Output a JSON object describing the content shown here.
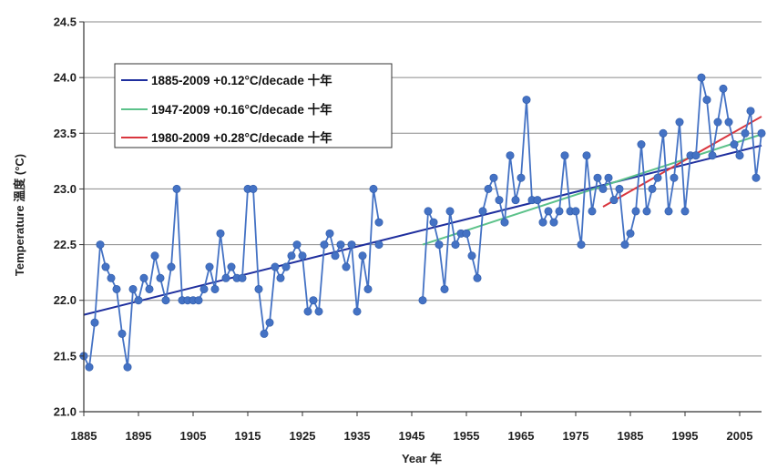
{
  "chart_data": {
    "type": "line",
    "xlabel": "Year 年",
    "ylabel": "Temperature 溫度 (°C)",
    "xlim": [
      1885,
      2009
    ],
    "ylim": [
      21.0,
      24.5
    ],
    "x_ticks": [
      "1885",
      "1895",
      "1905",
      "1915",
      "1925",
      "1935",
      "1945",
      "1955",
      "1965",
      "1975",
      "1985",
      "1995",
      "2005"
    ],
    "x_tick_values": [
      1885,
      1895,
      1905,
      1915,
      1925,
      1935,
      1945,
      1955,
      1965,
      1975,
      1985,
      1995,
      2005
    ],
    "y_ticks": [
      "21.0",
      "21.5",
      "22.0",
      "22.5",
      "23.0",
      "23.5",
      "24.0",
      "24.5"
    ],
    "y_tick_values": [
      21.0,
      21.5,
      22.0,
      22.5,
      23.0,
      23.5,
      24.0,
      24.5
    ],
    "grid": "horizontal",
    "legend_position": "top-left",
    "series": [
      {
        "color": "#4472C4",
        "marker": "circle",
        "segments": [
          {
            "x": [
              1885,
              1886,
              1887,
              1888,
              1889,
              1890,
              1891,
              1892,
              1893,
              1894,
              1895,
              1896,
              1897,
              1898,
              1899,
              1900,
              1901,
              1902,
              1903,
              1904,
              1905,
              1906,
              1907,
              1908,
              1909,
              1910,
              1911,
              1912,
              1913,
              1914,
              1915,
              1916,
              1917,
              1918,
              1919,
              1920,
              1921,
              1922,
              1923,
              1924,
              1925,
              1926,
              1927,
              1928,
              1929,
              1930,
              1931,
              1932,
              1933,
              1934,
              1935,
              1936,
              1937,
              1938,
              1939
            ],
            "y": [
              21.5,
              21.4,
              21.8,
              22.5,
              22.3,
              22.2,
              22.1,
              21.7,
              21.4,
              22.1,
              22.0,
              22.2,
              22.1,
              22.4,
              22.2,
              22.0,
              22.3,
              23.0,
              22.0,
              22.0,
              22.0,
              22.0,
              22.1,
              22.3,
              22.1,
              22.6,
              22.2,
              22.3,
              22.2,
              22.2,
              23.0,
              23.0,
              22.1,
              21.7,
              21.8,
              22.3,
              22.2,
              22.3,
              22.4,
              22.5,
              22.4,
              21.9,
              22.0,
              21.9,
              22.5,
              22.6,
              22.4,
              22.5,
              22.3,
              22.5,
              21.9,
              22.4,
              22.1,
              23.0,
              22.7
            ]
          },
          {
            "x": [
              1939
            ],
            "y": [
              22.5
            ]
          },
          {
            "x": [
              1947,
              1948,
              1949,
              1950,
              1951,
              1952,
              1953,
              1954,
              1955,
              1956,
              1957,
              1958,
              1959,
              1960,
              1961,
              1962,
              1963,
              1964,
              1965,
              1966,
              1967,
              1968,
              1969,
              1970,
              1971,
              1972,
              1973,
              1974,
              1975,
              1976,
              1977,
              1978,
              1979,
              1980,
              1981,
              1982,
              1983,
              1984,
              1985,
              1986,
              1987,
              1988,
              1989,
              1990,
              1991,
              1992,
              1993,
              1994,
              1995,
              1996,
              1997,
              1998,
              1999,
              2000,
              2001,
              2002,
              2003,
              2004,
              2005,
              2006,
              2007,
              2008,
              2009
            ],
            "y": [
              22.0,
              22.8,
              22.7,
              22.5,
              22.1,
              22.8,
              22.5,
              22.6,
              22.6,
              22.4,
              22.2,
              22.8,
              23.0,
              23.1,
              22.9,
              22.7,
              23.3,
              22.9,
              23.1,
              23.8,
              22.9,
              22.9,
              22.7,
              22.8,
              22.7,
              22.8,
              23.3,
              22.8,
              22.8,
              22.5,
              23.3,
              22.8,
              23.1,
              23.0,
              23.1,
              22.9,
              23.0,
              22.5,
              22.6,
              22.8,
              23.4,
              22.8,
              23.0,
              23.1,
              23.5,
              22.8,
              23.1,
              23.6,
              22.8,
              23.3,
              23.3,
              24.0,
              23.8,
              23.3,
              23.6,
              23.9,
              23.6,
              23.4,
              23.3,
              23.5,
              23.7,
              23.1,
              23.5
            ]
          }
        ]
      }
    ],
    "trends": [
      {
        "label": "1885-2009 +0.12°C/decade 十年",
        "color": "#1F2F9E",
        "x": [
          1885,
          2009
        ],
        "y": [
          21.87,
          23.39
        ]
      },
      {
        "label": "1947-2009 +0.16°C/decade 十年",
        "color": "#5CC28A",
        "x": [
          1947,
          2009
        ],
        "y": [
          22.5,
          23.49
        ]
      },
      {
        "label": "1980-2009 +0.28°C/decade 十年",
        "color": "#D9363E",
        "x": [
          1980,
          2009
        ],
        "y": [
          22.84,
          23.65
        ]
      }
    ]
  }
}
